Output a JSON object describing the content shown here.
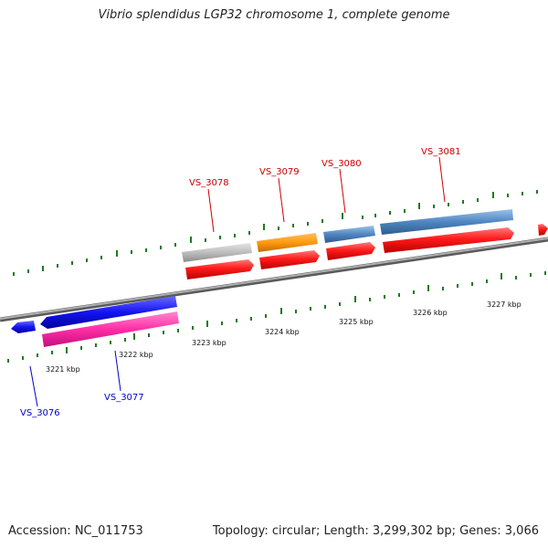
{
  "title": "Vibrio splendidus LGP32 chromosome 1, complete genome",
  "accession": "Accession: NC_011753",
  "summary": "Topology: circular; Length: 3,299,302 bp; Genes: 3,066",
  "colors": {
    "backbone": "#808080",
    "tick": "#1f7a1f",
    "red": "#ff1a1a",
    "gray": "#bdbdbd",
    "orange": "#ff9a10",
    "steel": "#4f86c0",
    "blue": "#1414f0",
    "pink": "#ff2ea6",
    "label_top": "#cc0000",
    "label_bottom": "#0000cc"
  },
  "scale_labels": [
    "3221 kbp",
    "3222 kbp",
    "3223 kbp",
    "3224 kbp",
    "3225 kbp",
    "3226 kbp",
    "3227 kbp"
  ],
  "gene_labels_top": [
    "VS_3078",
    "VS_3079",
    "VS_3080",
    "VS_3081"
  ],
  "gene_labels_bottom": [
    "VS_3076",
    "VS_3077"
  ]
}
